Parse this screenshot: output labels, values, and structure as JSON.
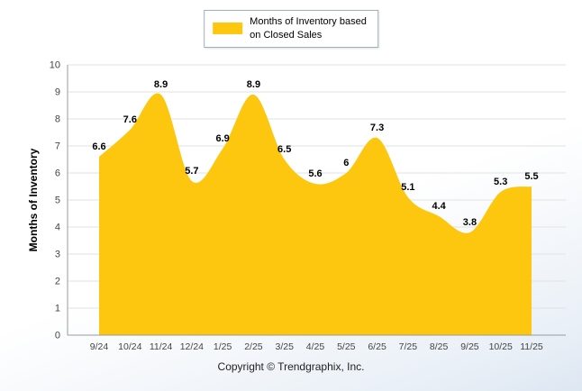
{
  "legend": {
    "line1": "Months of Inventory based",
    "line2": "on Closed Sales"
  },
  "footer": {
    "copyright": "Copyright © Trendgraphix, Inc."
  },
  "colors": {
    "series_fill": "#FCC70E",
    "grid": "#e2e2e2",
    "axis": "#9a9a9a",
    "tick_label": "#444444",
    "data_label": "#000000"
  },
  "chart_data": {
    "type": "area",
    "title": "",
    "xlabel": "",
    "ylabel": "Months of Inventory",
    "series_name": "Months of Inventory based on Closed Sales",
    "legend_position": "top",
    "grid": true,
    "ylim": [
      0,
      10
    ],
    "ytick_step": 1,
    "categories": [
      "9/24",
      "10/24",
      "11/24",
      "12/24",
      "1/25",
      "2/25",
      "3/25",
      "4/25",
      "5/25",
      "6/25",
      "7/25",
      "8/25",
      "9/25",
      "10/25",
      "11/25"
    ],
    "values": [
      6.6,
      7.6,
      8.9,
      5.7,
      6.9,
      8.9,
      6.5,
      5.6,
      6,
      7.3,
      5.1,
      4.4,
      3.8,
      5.3,
      5.5
    ]
  }
}
